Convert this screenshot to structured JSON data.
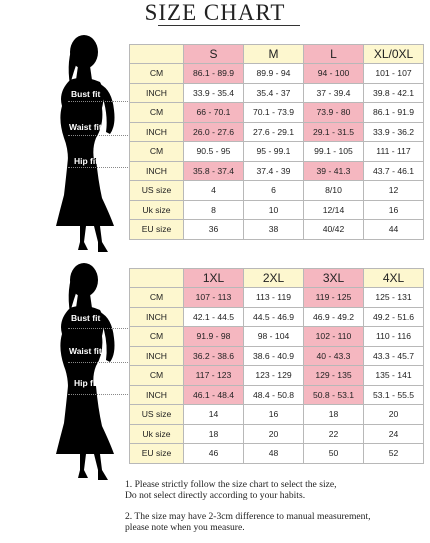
{
  "title": "SIZE CHART",
  "fit_labels": {
    "bust": "Bust fit",
    "waist": "Waist fit",
    "hip": "Hip fit"
  },
  "table1": {
    "sizes": [
      "S",
      "M",
      "L",
      "XL/0XL"
    ],
    "rows": [
      {
        "label": "CM",
        "values": [
          "86.1 - 89.9",
          "89.9 - 94",
          "94 - 100",
          "101 - 107"
        ]
      },
      {
        "label": "INCH",
        "values": [
          "33.9 - 35.4",
          "35.4 - 37",
          "37 - 39.4",
          "39.8 - 42.1"
        ]
      },
      {
        "label": "CM",
        "values": [
          "66 - 70.1",
          "70.1 - 73.9",
          "73.9 - 80",
          "86.1 - 91.9"
        ]
      },
      {
        "label": "INCH",
        "values": [
          "26.0 - 27.6",
          "27.6 - 29.1",
          "29.1 - 31.5",
          "33.9 - 36.2"
        ]
      },
      {
        "label": "CM",
        "values": [
          "90.5 - 95",
          "95 - 99.1",
          "99.1 - 105",
          "111 - 117"
        ]
      },
      {
        "label": "INCH",
        "values": [
          "35.8 - 37.4",
          "37.4 - 39",
          "39 - 41.3",
          "43.7 - 46.1"
        ]
      },
      {
        "label": "US size",
        "values": [
          "4",
          "6",
          "8/10",
          "12"
        ]
      },
      {
        "label": "Uk size",
        "values": [
          "8",
          "10",
          "12/14",
          "16"
        ]
      },
      {
        "label": "EU size",
        "values": [
          "36",
          "38",
          "40/42",
          "44"
        ]
      }
    ]
  },
  "table2": {
    "sizes": [
      "1XL",
      "2XL",
      "3XL",
      "4XL"
    ],
    "rows": [
      {
        "label": "CM",
        "values": [
          "107 - 113",
          "113 - 119",
          "119 - 125",
          "125 - 131"
        ]
      },
      {
        "label": "INCH",
        "values": [
          "42.1 - 44.5",
          "44.5 - 46.9",
          "46.9 - 49.2",
          "49.2 - 51.6"
        ]
      },
      {
        "label": "CM",
        "values": [
          "91.9 - 98",
          "98 - 104",
          "102 - 110",
          "110 - 116"
        ]
      },
      {
        "label": "INCH",
        "values": [
          "36.2 - 38.6",
          "38.6 - 40.9",
          "40 - 43.3",
          "43.3 - 45.7"
        ]
      },
      {
        "label": "CM",
        "values": [
          "117 - 123",
          "123 - 129",
          "129 - 135",
          "135 - 141"
        ]
      },
      {
        "label": "INCH",
        "values": [
          "46.1 - 48.4",
          "48.4 - 50.8",
          "50.8 - 53.1",
          "53.1 - 55.5"
        ]
      },
      {
        "label": "US size",
        "values": [
          "14",
          "16",
          "18",
          "20"
        ]
      },
      {
        "label": "Uk size",
        "values": [
          "18",
          "20",
          "22",
          "24"
        ]
      },
      {
        "label": "EU size",
        "values": [
          "46",
          "48",
          "50",
          "52"
        ]
      }
    ]
  },
  "notes": [
    "1. Please strictly follow the size chart to select the size,\nDo not select directly according to your habits.",
    "2. The size may have 2-3cm difference  to manual measurement,\nplease note when you measure."
  ],
  "colors": {
    "header_pink": "#f5b7c0",
    "label_yellow": "#fdf7cf",
    "silhouette": "#000000"
  }
}
